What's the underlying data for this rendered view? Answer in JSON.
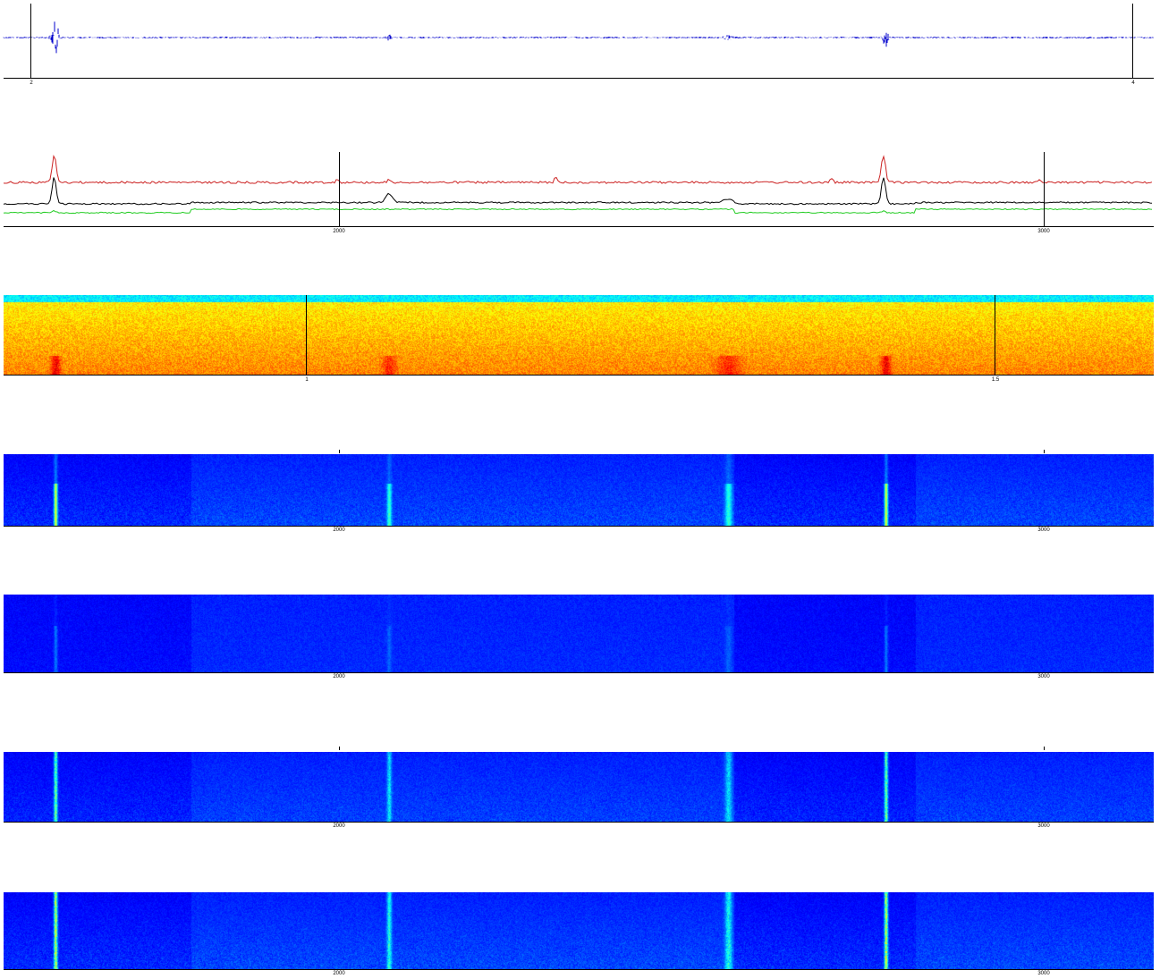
{
  "chart_data": [
    {
      "type": "line",
      "name_of_panel": "waveform",
      "series": [
        {
          "color": "#0000cc"
        }
      ],
      "xticks": [
        "2",
        "4"
      ],
      "events": [
        0.045,
        0.335,
        0.63,
        0.767
      ],
      "grid": true
    },
    {
      "type": "line",
      "name_of_panel": "energy-traces",
      "series": [
        {
          "color": "#cc2222"
        },
        {
          "color": "#000000"
        },
        {
          "color": "#22cc22"
        }
      ],
      "xticks": [
        "2000",
        "3000"
      ],
      "grid": true
    },
    {
      "type": "heatmap",
      "name_of_panel": "spectrogram-hot",
      "colormap": "hot-jet",
      "xticks": [
        "1",
        "1.5"
      ],
      "grid": true
    },
    {
      "type": "heatmap",
      "name_of_panel": "feature-map-1",
      "colormap": "jet",
      "xticks": [
        "2000",
        "3000"
      ]
    },
    {
      "type": "heatmap",
      "name_of_panel": "feature-map-2",
      "colormap": "jet",
      "xticks": [
        "2000",
        "3000"
      ]
    },
    {
      "type": "heatmap",
      "name_of_panel": "feature-map-3",
      "colormap": "jet",
      "xticks": [
        "2000",
        "3000"
      ]
    },
    {
      "type": "heatmap",
      "name_of_panel": "feature-map-4",
      "colormap": "jet",
      "xticks": [
        "2000",
        "3000"
      ]
    }
  ]
}
